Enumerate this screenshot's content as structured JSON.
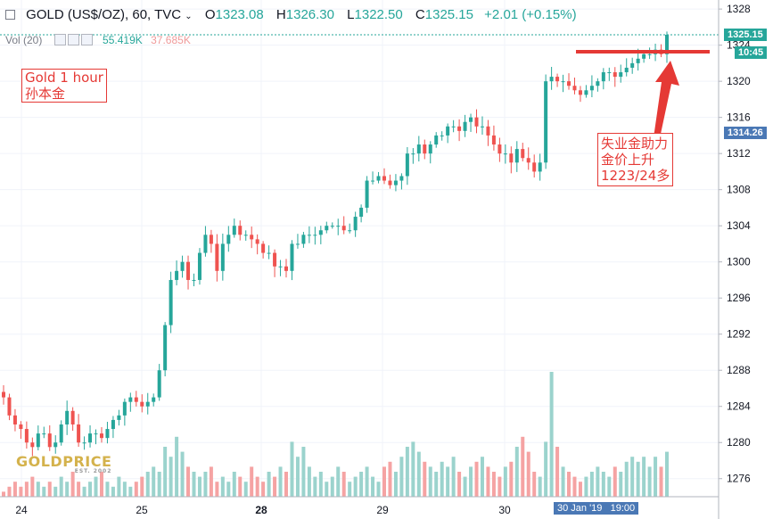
{
  "header": {
    "symbol": "GOLD (US$/OZ), 60, TVC",
    "open_label": "O",
    "open": "1323.08",
    "high_label": "H",
    "high": "1326.30",
    "low_label": "L",
    "low": "1322.50",
    "close_label": "C",
    "close": "1325.15",
    "change": "+2.01 (+0.15%)",
    "volume_label": "Vol (20)",
    "volume_value1": "55.419K",
    "volume_value2": "37.685K"
  },
  "annotations": {
    "note1_line1": "Gold 1 hour",
    "note1_line2": "孙本金",
    "note2_line1": "失业金助力",
    "note2_line2": "金价上升",
    "note2_line3": "1223/24多"
  },
  "price_tags": {
    "last_price": "1325.15",
    "countdown": "10:45",
    "crosshair_price": "1314.26"
  },
  "time_tags": {
    "date": "30 Jan '19",
    "time": "19:00"
  },
  "logo": {
    "text": "GOLDPRICE",
    "sub": "EST. 2002"
  },
  "colors": {
    "up": "#26a69a",
    "down": "#ef5350",
    "vol_up": "#9bd3cd",
    "vol_down": "#f5a3a3",
    "annotation": "#e53935",
    "grid": "#f0f3fa"
  },
  "chart_data": {
    "type": "candlestick",
    "y_range": [
      1274,
      1329
    ],
    "y_ticks": [
      1276,
      1280,
      1284,
      1288,
      1292,
      1296,
      1300,
      1304,
      1308,
      1312,
      1316,
      1320,
      1324,
      1328
    ],
    "x_tick_labels": [
      "24",
      "25",
      "28",
      "29",
      "30"
    ],
    "close_path": [
      1285,
      1283,
      1282,
      1281.5,
      1280,
      1279.5,
      1281,
      1281,
      1279.5,
      1280,
      1282,
      1283.5,
      1282,
      1280,
      1280,
      1281,
      1281,
      1280.5,
      1281.5,
      1282.5,
      1283,
      1284.5,
      1285,
      1284.5,
      1284,
      1284.5,
      1285,
      1288,
      1293,
      1298,
      1299,
      1300,
      1298,
      1298,
      1301,
      1303,
      1302,
      1299,
      1302,
      1303,
      1304,
      1303,
      1303,
      1302.5,
      1302,
      1301,
      1301,
      1299.5,
      1299.5,
      1299,
      1302,
      1302,
      1303,
      1303,
      1303,
      1303.5,
      1304,
      1304,
      1304,
      1303.5,
      1303.5,
      1305,
      1306,
      1309,
      1309,
      1309.5,
      1309,
      1308.5,
      1309,
      1309.5,
      1312,
      1312,
      1313,
      1312,
      1313,
      1314,
      1314,
      1315,
      1315,
      1314.5,
      1315.5,
      1316,
      1315,
      1315,
      1314,
      1313,
      1312,
      1312,
      1311,
      1312.5,
      1311.5,
      1311,
      1310,
      1311,
      1320,
      1320.5,
      1320,
      1320,
      1319.5,
      1319,
      1318.5,
      1319,
      1319.5,
      1320,
      1321,
      1321,
      1320.5,
      1321,
      1321.5,
      1322,
      1322.5,
      1323,
      1323,
      1323.5,
      1323,
      1325.15
    ],
    "volume_path": [
      1,
      2,
      3,
      2,
      3,
      4,
      3,
      2,
      3,
      2,
      4,
      3,
      5,
      3,
      2,
      3,
      4,
      5,
      3,
      2,
      4,
      3,
      2,
      3,
      4,
      5,
      6,
      5,
      10,
      8,
      12,
      9,
      6,
      5,
      4,
      5,
      6,
      3,
      4,
      3,
      5,
      4,
      3,
      6,
      4,
      3,
      5,
      4,
      6,
      5,
      11,
      8,
      10,
      6,
      4,
      5,
      3,
      4,
      6,
      5,
      3,
      4,
      5,
      6,
      4,
      3,
      6,
      7,
      5,
      8,
      10,
      11,
      9,
      7,
      6,
      5,
      7,
      6,
      8,
      5,
      4,
      6,
      7,
      8,
      6,
      5,
      4,
      6,
      7,
      10,
      12,
      9,
      5,
      4,
      11,
      25,
      10,
      6,
      5,
      4,
      3,
      4,
      5,
      6,
      5,
      4,
      6,
      5,
      7,
      8,
      7,
      8,
      6,
      8,
      6,
      9
    ]
  }
}
